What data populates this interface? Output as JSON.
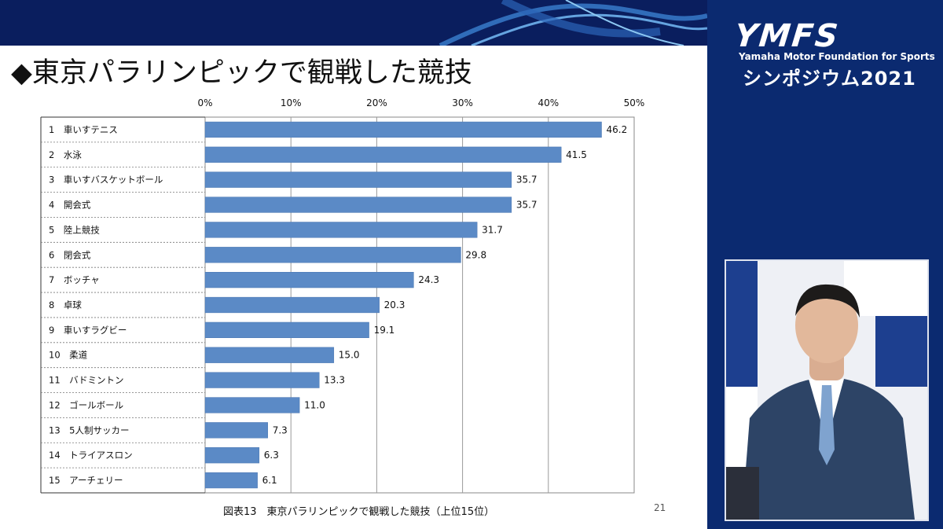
{
  "slide": {
    "title": "◆東京パラリンピックで観戦した競技",
    "caption": "図表13　東京パラリンピックで観戦した競技（上位15位）",
    "page_number": "21"
  },
  "sidebar": {
    "logo": "YMFS",
    "tagline": "Yamaha Motor Foundation for Sports",
    "event": "シンポジウム2021"
  },
  "colors": {
    "bar": "#5b8ac6",
    "banner": "#0a1e5e",
    "sidebar": "#0b2a70"
  },
  "chart_data": {
    "type": "bar",
    "orientation": "horizontal",
    "categories": [
      "1　車いすテニス",
      "2　水泳",
      "3　車いすバスケットボール",
      "4　開会式",
      "5　陸上競技",
      "6　閉会式",
      "7　ボッチャ",
      "8　卓球",
      "9　車いすラグビー",
      "10　柔道",
      "11　バドミントン",
      "12　ゴールボール",
      "13　5人制サッカー",
      "14　トライアスロン",
      "15　アーチェリー"
    ],
    "values": [
      46.2,
      41.5,
      35.7,
      35.7,
      31.7,
      29.8,
      24.3,
      20.3,
      19.1,
      15.0,
      13.3,
      11.0,
      7.3,
      6.3,
      6.1
    ],
    "value_labels": [
      "46.2",
      "41.5",
      "35.7",
      "35.7",
      "31.7",
      "29.8",
      "24.3",
      "20.3",
      "19.1",
      "15.0",
      "13.3",
      "11.0",
      "7.3",
      "6.3",
      "6.1"
    ],
    "x_ticks": [
      "0%",
      "10%",
      "20%",
      "30%",
      "40%",
      "50%"
    ],
    "xlim": [
      0,
      50
    ],
    "grid": true,
    "axis_position": "top"
  }
}
